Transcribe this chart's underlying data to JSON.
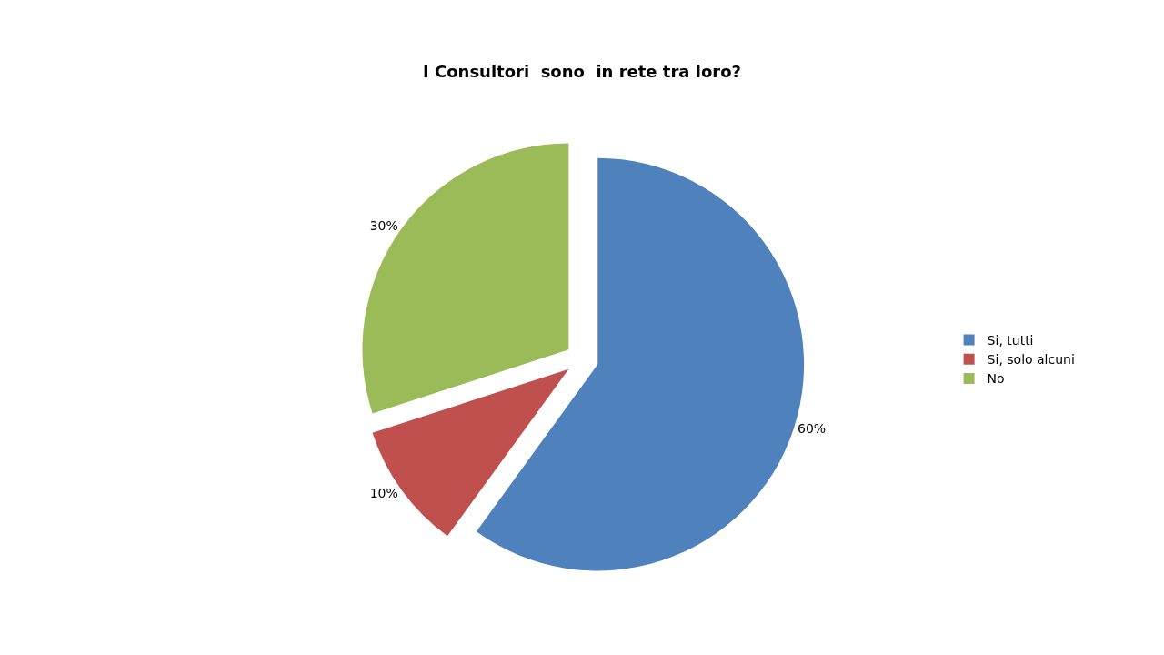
{
  "chart_data": {
    "type": "pie",
    "title": "I Consultori  sono  in rete tra loro?",
    "categories": [
      "Si, tutti",
      "Si, solo alcuni",
      "No"
    ],
    "values": [
      60,
      10,
      30
    ],
    "value_labels": [
      "60%",
      "10%",
      "30%"
    ],
    "colors": [
      "#4f81bd",
      "#c0504d",
      "#9bbb59"
    ],
    "legend": "right"
  }
}
